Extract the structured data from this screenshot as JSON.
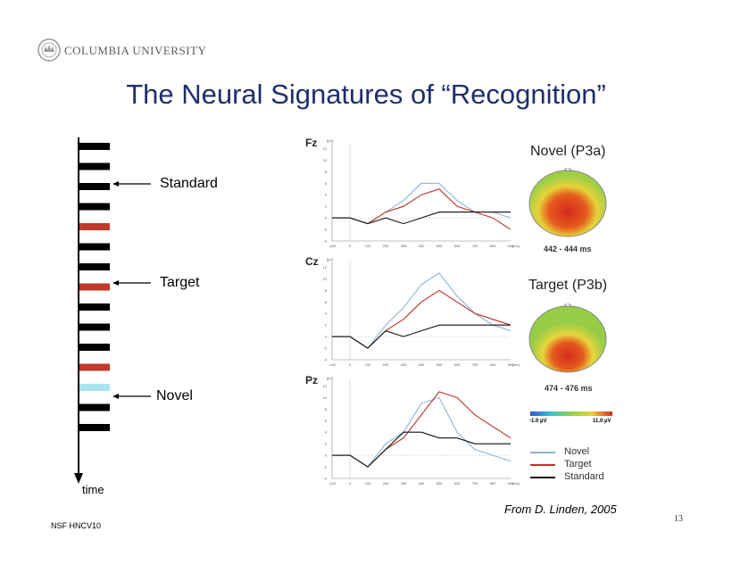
{
  "header": {
    "logo_text": "COLUMBIA UNIVERSITY",
    "title": "The Neural Signatures of “Recognition”"
  },
  "stimulus": {
    "labels": {
      "standard": "Standard",
      "target": "Target",
      "novel": "Novel",
      "time": "time"
    },
    "colors": {
      "standard": "#000000",
      "target": "#c0392b",
      "novel": "#a8e4f0"
    },
    "sequence": [
      "standard",
      "standard",
      "standard",
      "standard",
      "target",
      "standard",
      "standard",
      "target",
      "standard",
      "standard",
      "standard",
      "target",
      "novel",
      "standard",
      "standard"
    ]
  },
  "erp": {
    "unit": "[µV]",
    "x_unit": "[ms]",
    "x_ticks": [
      "-100",
      "0",
      "100",
      "200",
      "300",
      "400",
      "500",
      "600",
      "700",
      "800",
      "900"
    ],
    "y_ticks": [
      "12",
      "10",
      "8",
      "6",
      "4",
      "2",
      "0",
      "-2",
      "-4"
    ],
    "panels": [
      {
        "label": "Fz"
      },
      {
        "label": "Cz"
      },
      {
        "label": "Pz"
      }
    ]
  },
  "topomaps": [
    {
      "title": "Novel (P3a)",
      "caption": "442 - 444 ms"
    },
    {
      "title": "Target (P3b)",
      "caption": "474 - 476 ms"
    }
  ],
  "colorbar": {
    "min_label": "-1.0 µV",
    "max_label": "11.0 µV"
  },
  "legend": [
    {
      "label": "Novel",
      "color": "#8fb3d4"
    },
    {
      "label": "Target",
      "color": "#b5342a"
    },
    {
      "label": "Standard",
      "color": "#111111"
    }
  ],
  "citation": "From  D. Linden, 2005",
  "footer": {
    "left": "NSF HNCV10",
    "slide_number": "13"
  },
  "chart_data": {
    "type": "line",
    "x": [
      -100,
      0,
      100,
      200,
      300,
      400,
      500,
      600,
      700,
      800,
      900
    ],
    "ylim": [
      -4,
      13
    ],
    "panels": [
      {
        "label": "Fz",
        "series": [
          {
            "name": "Novel",
            "values": [
              0,
              0,
              -1,
              1,
              3,
              6,
              6,
              3,
              1,
              1,
              0
            ]
          },
          {
            "name": "Target",
            "values": [
              0,
              0,
              -1,
              1,
              2,
              4,
              5,
              2,
              1,
              0,
              -2
            ]
          },
          {
            "name": "Standard",
            "values": [
              0,
              0,
              -1,
              0,
              -1,
              0,
              1,
              1,
              1,
              1,
              1
            ]
          }
        ]
      },
      {
        "label": "Cz",
        "series": [
          {
            "name": "Novel",
            "values": [
              0,
              0,
              -2,
              2,
              5,
              9,
              11,
              7,
              4,
              2,
              1
            ]
          },
          {
            "name": "Target",
            "values": [
              0,
              0,
              -2,
              1,
              3,
              6,
              8,
              6,
              4,
              3,
              2
            ]
          },
          {
            "name": "Standard",
            "values": [
              0,
              0,
              -2,
              1,
              0,
              1,
              2,
              2,
              2,
              2,
              2
            ]
          }
        ]
      },
      {
        "label": "Pz",
        "series": [
          {
            "name": "Novel",
            "values": [
              0,
              0,
              -2,
              2,
              4,
              9,
              10,
              4,
              1,
              0,
              -1
            ]
          },
          {
            "name": "Target",
            "values": [
              0,
              0,
              -2,
              1,
              3,
              7,
              11,
              10,
              7,
              5,
              3
            ]
          },
          {
            "name": "Standard",
            "values": [
              0,
              0,
              -2,
              1,
              4,
              4,
              3,
              3,
              2,
              2,
              2
            ]
          }
        ]
      }
    ]
  }
}
